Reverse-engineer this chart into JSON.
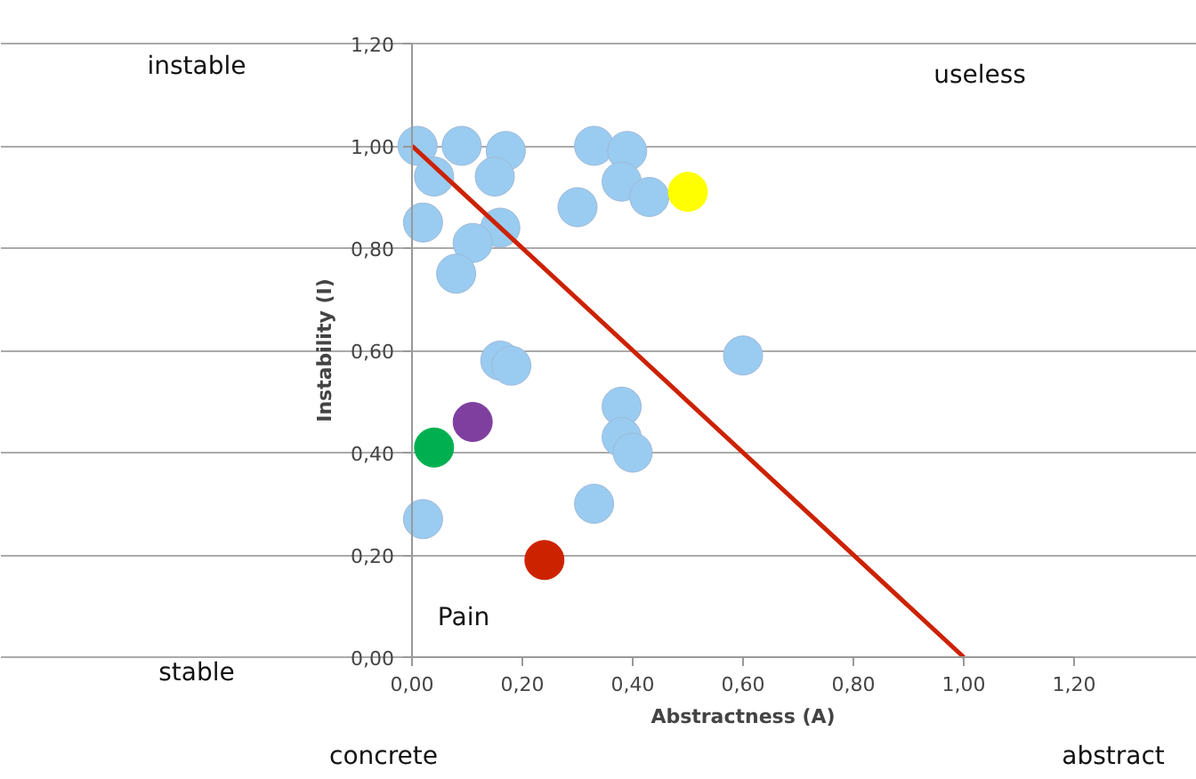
{
  "chart_data": {
    "type": "scatter",
    "xlabel": "Abstractness (A)",
    "ylabel": "Instability (I)",
    "xlim": [
      0,
      1.2
    ],
    "ylim": [
      0,
      1.2
    ],
    "xticks": [
      {
        "value": 0,
        "label": "0,00"
      },
      {
        "value": 0.2,
        "label": "0,20"
      },
      {
        "value": 0.4,
        "label": "0,40"
      },
      {
        "value": 0.6,
        "label": "0,60"
      },
      {
        "value": 0.8,
        "label": "0,80"
      },
      {
        "value": 1.0,
        "label": "1,00"
      },
      {
        "value": 1.2,
        "label": "1,20"
      }
    ],
    "yticks": [
      {
        "value": 0,
        "label": "0,00"
      },
      {
        "value": 0.2,
        "label": "0,20"
      },
      {
        "value": 0.4,
        "label": "0,40"
      },
      {
        "value": 0.6,
        "label": "0,60"
      },
      {
        "value": 0.8,
        "label": "0,80"
      },
      {
        "value": 1.0,
        "label": "1,00"
      },
      {
        "value": 1.2,
        "label": "1,20"
      }
    ],
    "grid": "y",
    "annotations": [
      "instable",
      "useless",
      "stable",
      "Pain",
      "concrete",
      "abstract"
    ],
    "series": [
      {
        "marker": "circle",
        "color": "#99ccf0",
        "x": [
          0.01,
          0.09,
          0.04,
          0.02,
          0.17,
          0.15,
          0.16,
          0.11,
          0.08,
          0.33,
          0.39,
          0.38,
          0.43,
          0.3,
          0.16,
          0.18,
          0.6,
          0.38,
          0.38,
          0.4,
          0.33,
          0.02
        ],
        "values": [
          1.0,
          1.0,
          0.94,
          0.85,
          0.99,
          0.94,
          0.84,
          0.81,
          0.75,
          1.0,
          0.99,
          0.93,
          0.9,
          0.88,
          0.58,
          0.57,
          0.59,
          0.49,
          0.43,
          0.4,
          0.3,
          0.27
        ]
      },
      {
        "marker": "circle",
        "color": "#ffff00",
        "x": [
          0.5
        ],
        "values": [
          0.91
        ]
      },
      {
        "marker": "circle",
        "color": "#00b050",
        "x": [
          0.04
        ],
        "values": [
          0.41
        ]
      },
      {
        "marker": "circle",
        "color": "#7f3f9f",
        "x": [
          0.11
        ],
        "values": [
          0.46
        ]
      },
      {
        "marker": "circle",
        "color": "#cc2200",
        "x": [
          0.24
        ],
        "values": [
          0.19
        ]
      },
      {
        "type": "line",
        "color": "#cc2200",
        "x": [
          0,
          1
        ],
        "values": [
          1,
          0
        ]
      }
    ]
  }
}
